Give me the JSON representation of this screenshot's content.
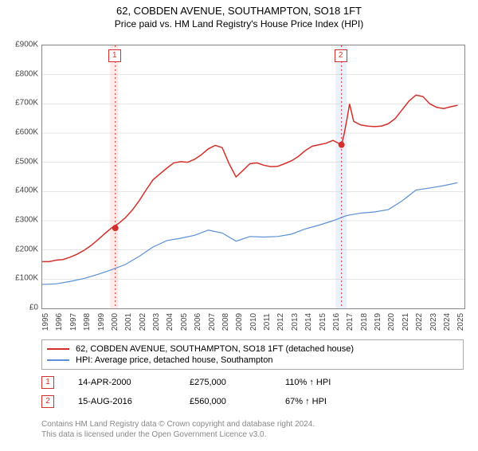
{
  "title": "62, COBDEN AVENUE, SOUTHAMPTON, SO18 1FT",
  "subtitle": "Price paid vs. HM Land Registry's House Price Index (HPI)",
  "chart": {
    "type": "line",
    "background_color": "#ffffff",
    "grid_color": "#cccccc",
    "border_color": "#888888",
    "xlim": [
      1995,
      2025.5
    ],
    "ylim": [
      0,
      900000
    ],
    "yticks": [
      0,
      100000,
      200000,
      300000,
      400000,
      500000,
      600000,
      700000,
      800000,
      900000
    ],
    "ytick_labels": [
      "£0",
      "£100K",
      "£200K",
      "£300K",
      "£400K",
      "£500K",
      "£600K",
      "£700K",
      "£800K",
      "£900K"
    ],
    "xticks": [
      1995,
      1996,
      1997,
      1998,
      1999,
      2000,
      2001,
      2002,
      2003,
      2004,
      2005,
      2006,
      2007,
      2008,
      2009,
      2010,
      2011,
      2012,
      2013,
      2014,
      2015,
      2016,
      2017,
      2018,
      2019,
      2020,
      2021,
      2022,
      2023,
      2024,
      2025
    ],
    "series": [
      {
        "name": "62, COBDEN AVENUE, SOUTHAMPTON, SO18 1FT (detached house)",
        "color": "#d4302b",
        "line_width": 1.5,
        "data": [
          [
            1995,
            160000
          ],
          [
            1995.5,
            160000
          ],
          [
            1996,
            165000
          ],
          [
            1996.5,
            167000
          ],
          [
            1997,
            175000
          ],
          [
            1997.5,
            185000
          ],
          [
            1998,
            198000
          ],
          [
            1998.5,
            214000
          ],
          [
            1999,
            234000
          ],
          [
            1999.5,
            255000
          ],
          [
            2000,
            275000
          ],
          [
            2000.5,
            290000
          ],
          [
            2001,
            310000
          ],
          [
            2001.5,
            336000
          ],
          [
            2002,
            368000
          ],
          [
            2002.5,
            405000
          ],
          [
            2003,
            440000
          ],
          [
            2003.5,
            460000
          ],
          [
            2004,
            480000
          ],
          [
            2004.5,
            498000
          ],
          [
            2005,
            502000
          ],
          [
            2005.5,
            500000
          ],
          [
            2006,
            510000
          ],
          [
            2006.5,
            526000
          ],
          [
            2007,
            546000
          ],
          [
            2007.5,
            558000
          ],
          [
            2008,
            550000
          ],
          [
            2008.5,
            495000
          ],
          [
            2009,
            450000
          ],
          [
            2009.5,
            472000
          ],
          [
            2010,
            495000
          ],
          [
            2010.5,
            498000
          ],
          [
            2011,
            490000
          ],
          [
            2011.5,
            485000
          ],
          [
            2012,
            486000
          ],
          [
            2012.5,
            495000
          ],
          [
            2013,
            505000
          ],
          [
            2013.5,
            520000
          ],
          [
            2014,
            540000
          ],
          [
            2014.5,
            555000
          ],
          [
            2015,
            560000
          ],
          [
            2015.5,
            565000
          ],
          [
            2016,
            575000
          ],
          [
            2016.62,
            560000
          ],
          [
            2016.8,
            595000
          ],
          [
            2017,
            644000
          ],
          [
            2017.2,
            700000
          ],
          [
            2017.5,
            640000
          ],
          [
            2018,
            628000
          ],
          [
            2018.5,
            624000
          ],
          [
            2019,
            622000
          ],
          [
            2019.5,
            624000
          ],
          [
            2020,
            632000
          ],
          [
            2020.5,
            650000
          ],
          [
            2021,
            680000
          ],
          [
            2021.5,
            710000
          ],
          [
            2022,
            730000
          ],
          [
            2022.5,
            725000
          ],
          [
            2023,
            700000
          ],
          [
            2023.5,
            688000
          ],
          [
            2024,
            684000
          ],
          [
            2024.5,
            690000
          ],
          [
            2025,
            695000
          ]
        ]
      },
      {
        "name": "HPI: Average price, detached house, Southampton",
        "color": "#5b8fd6",
        "line_width": 1.2,
        "data": [
          [
            1995,
            82000
          ],
          [
            1996,
            84000
          ],
          [
            1997,
            92000
          ],
          [
            1998,
            102000
          ],
          [
            1999,
            116000
          ],
          [
            2000,
            132000
          ],
          [
            2001,
            150000
          ],
          [
            2002,
            178000
          ],
          [
            2003,
            210000
          ],
          [
            2004,
            232000
          ],
          [
            2005,
            240000
          ],
          [
            2006,
            250000
          ],
          [
            2007,
            268000
          ],
          [
            2008,
            258000
          ],
          [
            2009,
            230000
          ],
          [
            2010,
            246000
          ],
          [
            2011,
            244000
          ],
          [
            2012,
            246000
          ],
          [
            2013,
            254000
          ],
          [
            2014,
            272000
          ],
          [
            2015,
            285000
          ],
          [
            2016,
            300000
          ],
          [
            2017,
            318000
          ],
          [
            2018,
            326000
          ],
          [
            2019,
            330000
          ],
          [
            2020,
            338000
          ],
          [
            2021,
            368000
          ],
          [
            2022,
            405000
          ],
          [
            2023,
            412000
          ],
          [
            2024,
            420000
          ],
          [
            2025,
            430000
          ]
        ]
      }
    ],
    "sale_markers": [
      {
        "n": "1",
        "x": 2000.28,
        "y": 275000,
        "label_top": true,
        "dashed_color": "#d4302b",
        "shade_from": 1999.9,
        "shade_to": 2000.5,
        "shade_color": "#fdebea"
      },
      {
        "n": "2",
        "x": 2016.62,
        "y": 560000,
        "label_top": true,
        "dashed_color": "#d4302b",
        "shade_from": 2016.2,
        "shade_to": 2017.0,
        "shade_color": "#eaf1fb"
      }
    ],
    "sale_dot_color": "#d4302b"
  },
  "legend": {
    "items": [
      {
        "color": "#d4302b",
        "label": "62, COBDEN AVENUE, SOUTHAMPTON, SO18 1FT (detached house)"
      },
      {
        "color": "#5b8fd6",
        "label": "HPI: Average price, detached house, Southampton"
      }
    ]
  },
  "sales_table": [
    {
      "n": "1",
      "border_color": "#d4302b",
      "date": "14-APR-2000",
      "price": "£275,000",
      "pct": "110% ↑ HPI"
    },
    {
      "n": "2",
      "border_color": "#d4302b",
      "date": "15-AUG-2016",
      "price": "£560,000",
      "pct": "67% ↑ HPI"
    }
  ],
  "footer_line1": "Contains HM Land Registry data © Crown copyright and database right 2024.",
  "footer_line2": "This data is licensed under the Open Government Licence v3.0."
}
